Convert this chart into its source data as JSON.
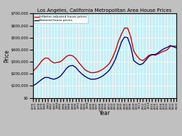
{
  "title": "Los Angeles, California Metropolitan Area House Prices",
  "xlabel": "Year",
  "ylabel": "Price",
  "background_color": "#c8eef5",
  "fig_background": "#c0c0c0",
  "grid_color": "#ffffff",
  "years": [
    1976,
    1977,
    1978,
    1979,
    1980,
    1981,
    1982,
    1983,
    1984,
    1985,
    1986,
    1987,
    1988,
    1989,
    1990,
    1991,
    1992,
    1993,
    1994,
    1995,
    1996,
    1997,
    1998,
    1999,
    2000,
    2001,
    2002,
    2003,
    2004,
    2005,
    2006,
    2007,
    2008,
    2009,
    2010,
    2011,
    2012,
    2013,
    2014,
    2015,
    2016,
    2017,
    2018,
    2019,
    2020,
    2021,
    2022,
    2023
  ],
  "inflation_adjusted": [
    220000,
    245000,
    275000,
    310000,
    330000,
    330000,
    305000,
    290000,
    295000,
    300000,
    320000,
    345000,
    355000,
    350000,
    330000,
    295000,
    265000,
    235000,
    220000,
    210000,
    210000,
    215000,
    225000,
    240000,
    260000,
    285000,
    330000,
    390000,
    470000,
    530000,
    580000,
    580000,
    510000,
    390000,
    350000,
    320000,
    310000,
    330000,
    355000,
    360000,
    355000,
    365000,
    380000,
    390000,
    400000,
    430000,
    430000,
    430000
  ],
  "nominal": [
    100000,
    115000,
    135000,
    155000,
    170000,
    170000,
    160000,
    155000,
    165000,
    180000,
    210000,
    245000,
    265000,
    270000,
    255000,
    225000,
    200000,
    180000,
    165000,
    155000,
    155000,
    160000,
    170000,
    185000,
    205000,
    230000,
    270000,
    320000,
    390000,
    465000,
    505000,
    500000,
    430000,
    310000,
    290000,
    275000,
    285000,
    315000,
    345000,
    360000,
    360000,
    375000,
    395000,
    410000,
    420000,
    435000,
    425000,
    415000
  ],
  "inflation_color": "#cc0000",
  "nominal_color": "#000080",
  "legend_inflation": "Inflation adjusted house prices",
  "legend_nominal": "Nominal house prices",
  "ylim": [
    0,
    700000
  ],
  "yticks": [
    0,
    100000,
    200000,
    300000,
    400000,
    500000,
    600000,
    700000
  ]
}
